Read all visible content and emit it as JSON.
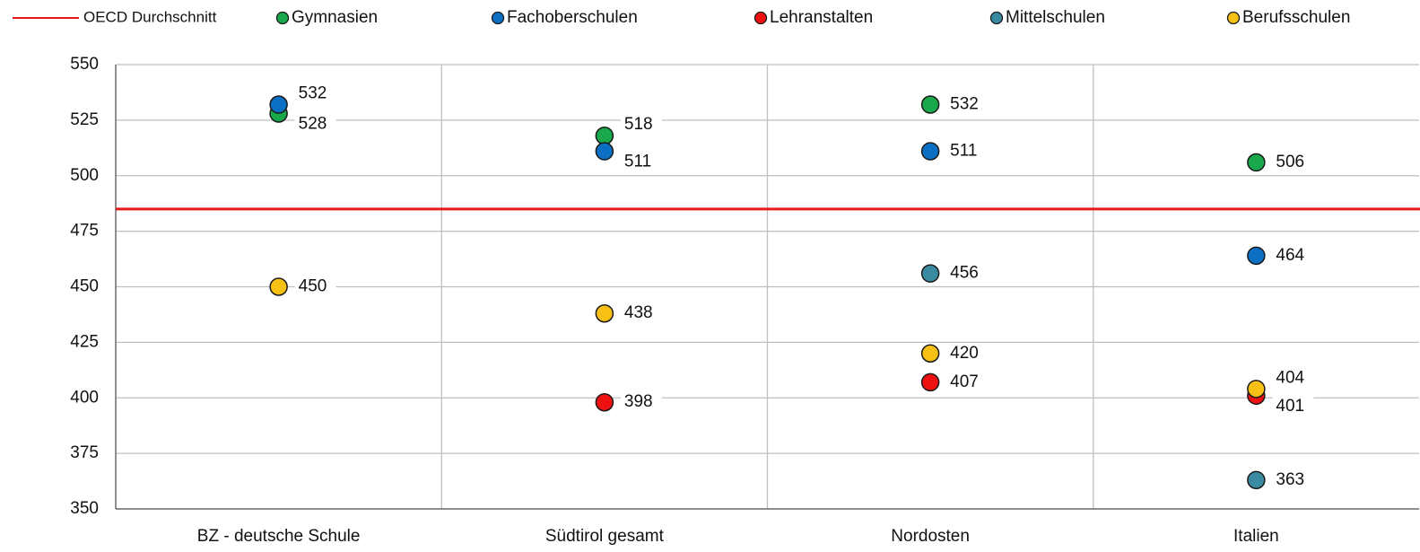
{
  "chart_data": {
    "type": "dot",
    "categories": [
      "BZ - deutsche Schule",
      "Südtirol gesamt",
      "Nordosten",
      "Italien"
    ],
    "reference_line": {
      "name": "OECD Durchschnitt",
      "color": "#e8191b",
      "value": 485
    },
    "series": [
      {
        "name": "Gymnasien",
        "color": "#19a84b",
        "values": [
          528,
          518,
          532,
          506
        ]
      },
      {
        "name": "Fachoberschulen",
        "color": "#0b70c4",
        "values": [
          532,
          511,
          511,
          464
        ]
      },
      {
        "name": "Lehranstalten",
        "color": "#ee1111",
        "values": [
          null,
          398,
          407,
          401
        ]
      },
      {
        "name": "Mittelschulen",
        "color": "#3a8ba1",
        "values": [
          null,
          null,
          456,
          363
        ]
      },
      {
        "name": "Berufsschulen",
        "color": "#f6c114",
        "values": [
          450,
          438,
          420,
          404
        ]
      }
    ],
    "ylim": [
      350,
      550
    ],
    "yticks": [
      350,
      375,
      400,
      425,
      450,
      475,
      500,
      525,
      550
    ],
    "grid": true
  }
}
